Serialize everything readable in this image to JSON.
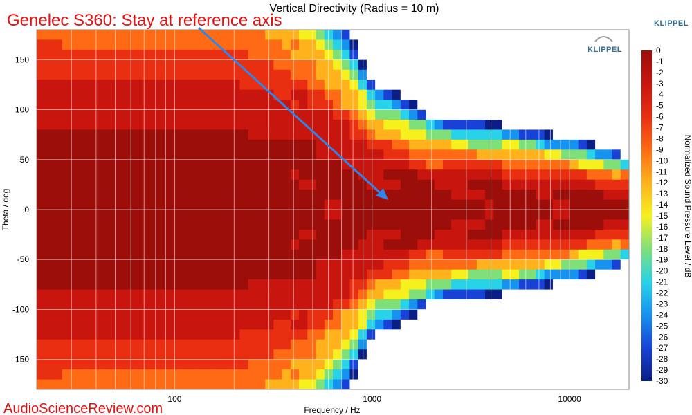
{
  "chart_data": {
    "type": "heatmap",
    "title": "Vertical Directivity (Radius = 10 m)",
    "xlabel": "Frequency / Hz",
    "ylabel": "Theta / deg",
    "colorbar_label": "Normalized Sound Pressure Level / dB",
    "x_scale": "log",
    "xlim": [
      20,
      20000
    ],
    "ylim": [
      -180,
      180
    ],
    "x_ticks": [
      100,
      1000,
      10000
    ],
    "x_tick_labels": [
      "100",
      "1000",
      "10000"
    ],
    "y_ticks": [
      150,
      100,
      50,
      0,
      -50,
      -100,
      -150
    ],
    "y_tick_labels": [
      "150",
      "100",
      "50",
      "0",
      "-50",
      "-100",
      "-150"
    ],
    "colorbar_range": [
      -30,
      0
    ],
    "colorbar_ticks": [
      0,
      -1,
      -2,
      -3,
      -4,
      -5,
      -6,
      -7,
      -8,
      -9,
      -10,
      -11,
      -12,
      -13,
      -14,
      -15,
      -16,
      -17,
      -18,
      -19,
      -20,
      -21,
      -22,
      -23,
      -24,
      -25,
      -26,
      -27,
      -28,
      -29,
      -30
    ],
    "grid": true,
    "description_of_field": {
      "freq_hz": [
        20,
        200,
        400,
        700,
        1000,
        2000,
        5000,
        10000,
        20000
      ],
      "half_beamwidth_deg": [
        180,
        175,
        150,
        110,
        75,
        55,
        48,
        42,
        30
      ]
    },
    "colors": {
      "scale": [
        "#9c0e0a",
        "#c8160f",
        "#e92f12",
        "#ff6a14",
        "#ffb21c",
        "#f6f01e",
        "#7fe07a",
        "#28d2e8",
        "#1692f0",
        "#1842d6",
        "#0b1e86"
      ],
      "below_range": "#ffffff"
    }
  },
  "annotation": {
    "text": "Genelec S360: Stay at reference axis",
    "arrow_color": "#2f86e8",
    "text_color": "#e8110f"
  },
  "brand": {
    "corner": "KLIPPEL",
    "logo": "KLIPPEL"
  },
  "footer": {
    "text": "AudioScienceReview.com"
  }
}
